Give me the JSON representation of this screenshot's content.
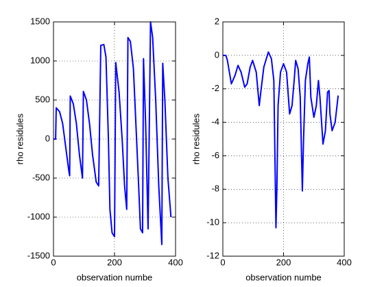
{
  "chart_data": [
    {
      "type": "line",
      "xlabel": "observation numbe",
      "ylabel": "rho residules",
      "xlim": [
        0,
        400
      ],
      "xticks": [
        0,
        200,
        400
      ],
      "ylim": [
        -1500,
        1500
      ],
      "yticks": [
        -1500,
        -1000,
        -500,
        0,
        500,
        1000,
        1500
      ],
      "grid": true,
      "series": [
        {
          "color": "#0000ff",
          "x": [
            0,
            7,
            9,
            20,
            30,
            40,
            50,
            53,
            55,
            65,
            75,
            85,
            95,
            98,
            108,
            118,
            128,
            140,
            148,
            150,
            155,
            165,
            172,
            180,
            185,
            192,
            200,
            204,
            215,
            225,
            233,
            240,
            244,
            252,
            262,
            270,
            278,
            285,
            292,
            295,
            302,
            310,
            318,
            325,
            335,
            345,
            355,
            358,
            365,
            375,
            385
          ],
          "values": [
            0,
            0,
            400,
            350,
            200,
            -100,
            -400,
            -470,
            550,
            450,
            200,
            -200,
            -500,
            610,
            500,
            200,
            -200,
            -550,
            -600,
            -100,
            1200,
            1210,
            1050,
            0,
            -900,
            -1200,
            -1250,
            980,
            600,
            0,
            -600,
            -900,
            1300,
            1250,
            900,
            200,
            -500,
            -1150,
            -1200,
            1030,
            200,
            -1150,
            1500,
            1300,
            500,
            -600,
            -1350,
            970,
            500,
            -500,
            -1000
          ]
        }
      ]
    },
    {
      "type": "line",
      "xlabel": "observation numbe",
      "ylabel": "rho residules",
      "xlim": [
        0,
        400
      ],
      "xticks": [
        0,
        200,
        400
      ],
      "ylim": [
        -12,
        2
      ],
      "yticks": [
        -12,
        -10,
        -8,
        -6,
        -4,
        -2,
        0,
        2
      ],
      "grid": true,
      "series": [
        {
          "color": "#0000ff",
          "x": [
            0,
            10,
            15,
            28,
            40,
            50,
            60,
            72,
            80,
            90,
            98,
            110,
            120,
            125,
            135,
            150,
            160,
            168,
            175,
            178,
            182,
            190,
            200,
            210,
            220,
            228,
            235,
            240,
            248,
            255,
            262,
            266,
            272,
            280,
            285,
            290,
            300,
            308,
            315,
            320,
            330,
            338,
            345,
            350,
            353,
            360,
            370,
            380
          ],
          "values": [
            0,
            0,
            -0.3,
            -1.7,
            -1.2,
            -0.6,
            -1,
            -1.9,
            -1.7,
            -0.7,
            -0.3,
            -1,
            -3,
            -2.2,
            -0.7,
            0.2,
            -0.2,
            -1.5,
            -10.3,
            -8,
            -3,
            -1,
            -0.5,
            -1,
            -3.5,
            -3,
            -1.5,
            -0.3,
            -0.8,
            -2.5,
            -8.1,
            -5,
            -1.5,
            -0.5,
            -0.1,
            -2.5,
            -3.7,
            -3,
            -1.5,
            -2.5,
            -5.3,
            -4.5,
            -2.2,
            -2.1,
            -3.5,
            -4.5,
            -4,
            -2.4
          ]
        }
      ]
    }
  ]
}
